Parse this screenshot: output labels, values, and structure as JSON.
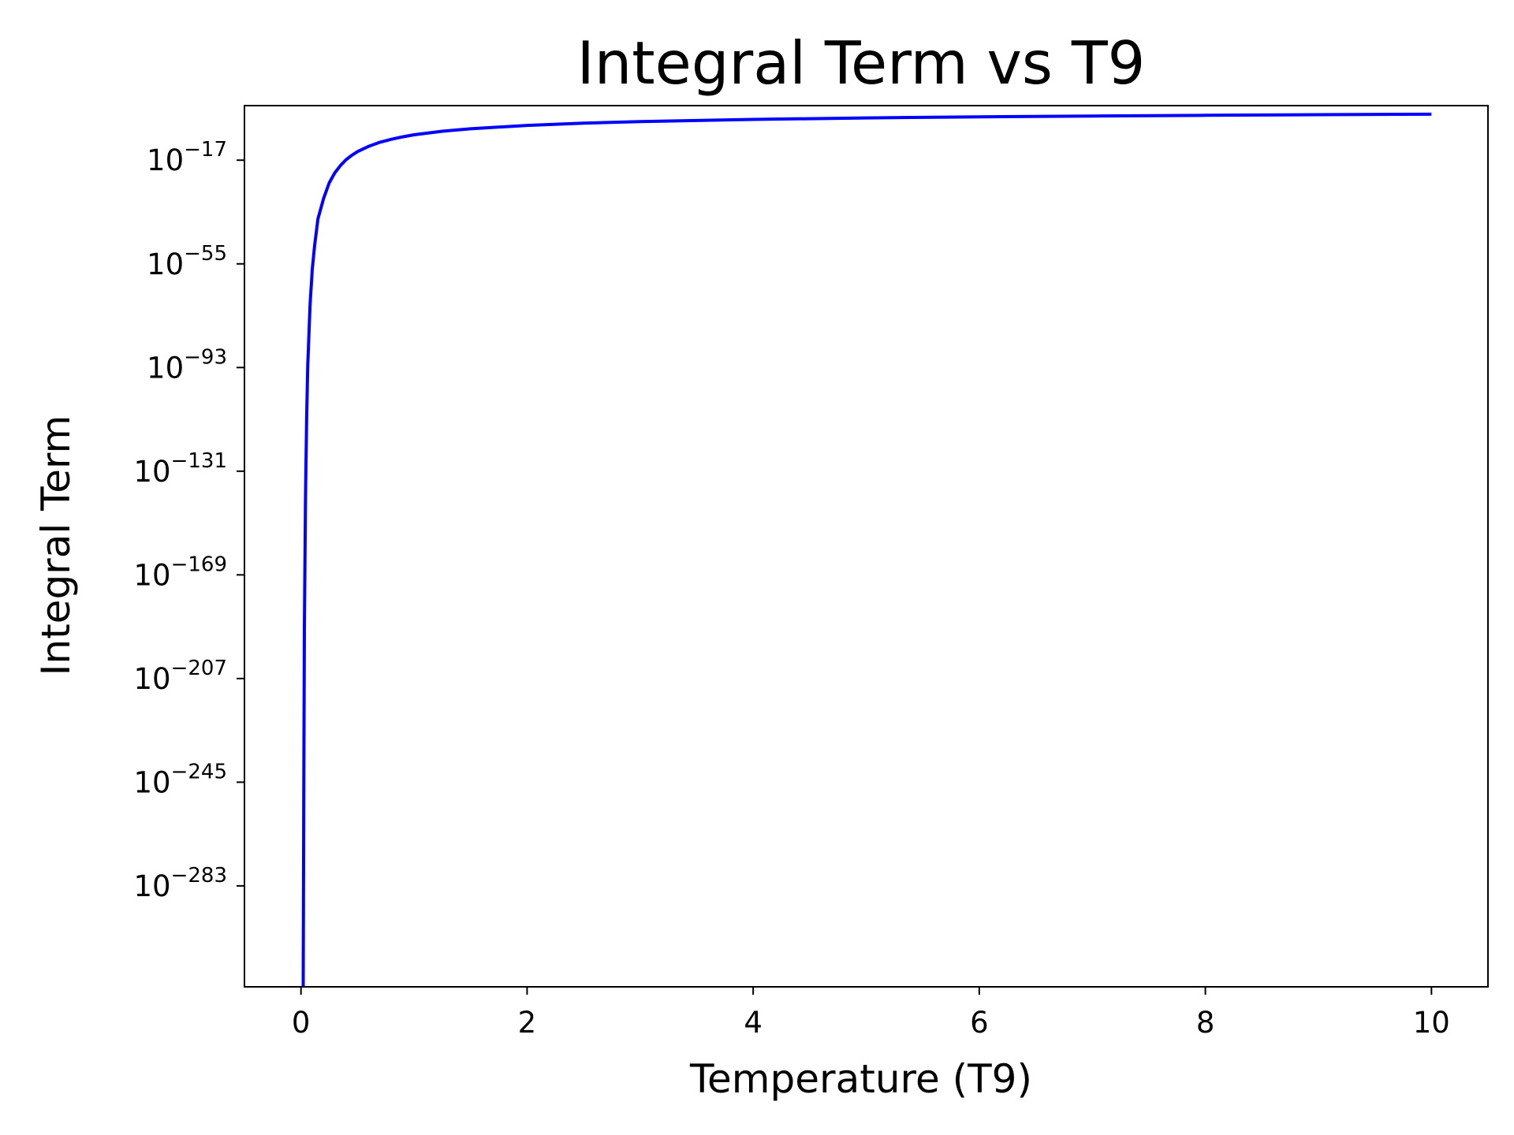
{
  "chart_data": {
    "type": "line",
    "title": "Integral Term vs T9",
    "xlabel": "Temperature (T9)",
    "ylabel": "Integral Term",
    "x_scale": "linear",
    "y_scale": "log",
    "xlim": [
      -0.5,
      10.5
    ],
    "ylim_log10": [
      -320,
      3
    ],
    "xticks": [
      0,
      2,
      4,
      6,
      8,
      10
    ],
    "xtick_labels": [
      "0",
      "2",
      "4",
      "6",
      "8",
      "10"
    ],
    "yticks_log10": [
      -17,
      -55,
      -93,
      -131,
      -169,
      -207,
      -245,
      -283
    ],
    "ytick_labels": [
      {
        "base": "10",
        "exp": "−17"
      },
      {
        "base": "10",
        "exp": "−55"
      },
      {
        "base": "10",
        "exp": "−93"
      },
      {
        "base": "10",
        "exp": "−131"
      },
      {
        "base": "10",
        "exp": "−169"
      },
      {
        "base": "10",
        "exp": "−207"
      },
      {
        "base": "10",
        "exp": "−245"
      },
      {
        "base": "10",
        "exp": "−283"
      }
    ],
    "grid": false,
    "legend": "none",
    "series": [
      {
        "color": "#0000ff",
        "x": [
          0.02,
          0.025,
          0.03,
          0.04,
          0.05,
          0.06,
          0.08,
          0.1,
          0.12,
          0.15,
          0.2,
          0.25,
          0.3,
          0.35,
          0.4,
          0.45,
          0.5,
          0.6,
          0.7,
          0.8,
          0.9,
          1.0,
          1.25,
          1.5,
          2.0,
          2.5,
          3.0,
          4.0,
          5.0,
          6.0,
          7.0,
          8.0,
          9.0,
          10.0
        ],
        "y_log10": [
          -320,
          -243,
          -189,
          -141,
          -111,
          -92,
          -70,
          -57,
          -48.5,
          -38.5,
          -31,
          -25.3,
          -21.6,
          -18.9,
          -16.8,
          -15.2,
          -13.85,
          -11.9,
          -10.4,
          -9.35,
          -8.45,
          -7.7,
          -6.4,
          -5.5,
          -4.25,
          -3.45,
          -2.85,
          -2.05,
          -1.5,
          -1.1,
          -0.8,
          -0.55,
          -0.33,
          -0.15
        ]
      }
    ]
  }
}
